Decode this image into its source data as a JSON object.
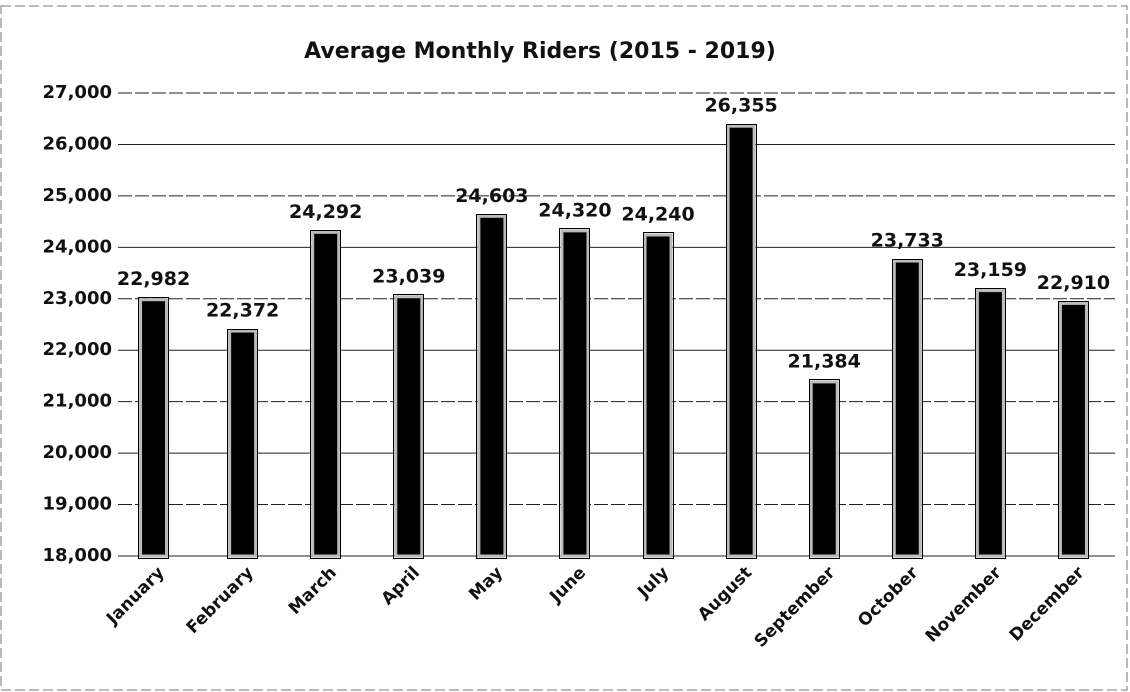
{
  "chart_data": {
    "type": "bar",
    "title": "Average Monthly Riders (2015 - 2019)",
    "categories": [
      "January",
      "February",
      "March",
      "April",
      "May",
      "June",
      "July",
      "August",
      "September",
      "October",
      "November",
      "December"
    ],
    "values": [
      22982,
      22372,
      24292,
      23039,
      24603,
      24320,
      24240,
      26355,
      21384,
      23733,
      23159,
      22910
    ],
    "value_labels": [
      "22,982",
      "22,372",
      "24,292",
      "23,039",
      "24,603",
      "24,320",
      "24,240",
      "26,355",
      "21,384",
      "23,733",
      "23,159",
      "22,910"
    ],
    "color": "#000000",
    "ylim": [
      18000,
      27000
    ],
    "yticks": [
      {
        "value": 18000,
        "label": "18,000"
      },
      {
        "value": 19000,
        "label": "19,000"
      },
      {
        "value": 20000,
        "label": "20,000"
      },
      {
        "value": 21000,
        "label": "21,000"
      },
      {
        "value": 22000,
        "label": "22,000"
      },
      {
        "value": 23000,
        "label": "23,000"
      },
      {
        "value": 24000,
        "label": "24,000"
      },
      {
        "value": 25000,
        "label": "25,000"
      },
      {
        "value": 26000,
        "label": "26,000"
      },
      {
        "value": 27000,
        "label": "27,000"
      }
    ],
    "grid": true
  }
}
